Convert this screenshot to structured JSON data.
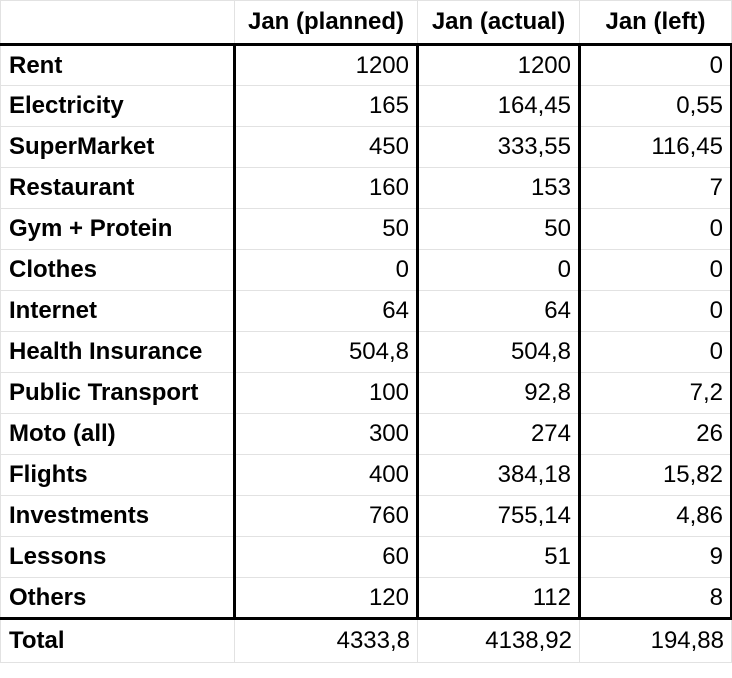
{
  "table": {
    "headers": [
      "",
      "Jan (planned)",
      "Jan (actual)",
      "Jan (left)"
    ],
    "rows": [
      {
        "label": "Rent",
        "planned": "1200",
        "actual": "1200",
        "left": "0"
      },
      {
        "label": "Electricity",
        "planned": "165",
        "actual": "164,45",
        "left": "0,55"
      },
      {
        "label": "SuperMarket",
        "planned": "450",
        "actual": "333,55",
        "left": "116,45"
      },
      {
        "label": "Restaurant",
        "planned": "160",
        "actual": "153",
        "left": "7"
      },
      {
        "label": "Gym + Protein",
        "planned": "50",
        "actual": "50",
        "left": "0"
      },
      {
        "label": "Clothes",
        "planned": "0",
        "actual": "0",
        "left": "0"
      },
      {
        "label": "Internet",
        "planned": "64",
        "actual": "64",
        "left": "0"
      },
      {
        "label": "Health Insurance",
        "planned": "504,8",
        "actual": "504,8",
        "left": "0"
      },
      {
        "label": "Public Transport",
        "planned": "100",
        "actual": "92,8",
        "left": "7,2"
      },
      {
        "label": "Moto (all)",
        "planned": "300",
        "actual": "274",
        "left": "26"
      },
      {
        "label": "Flights",
        "planned": "400",
        "actual": "384,18",
        "left": "15,82"
      },
      {
        "label": "Investments",
        "planned": "760",
        "actual": "755,14",
        "left": "4,86"
      },
      {
        "label": "Lessons",
        "planned": "60",
        "actual": "51",
        "left": "9"
      },
      {
        "label": "Others",
        "planned": "120",
        "actual": "112",
        "left": "8"
      }
    ],
    "total": {
      "label": "Total",
      "planned": "4333,8",
      "actual": "4138,92",
      "left": "194,88"
    }
  }
}
